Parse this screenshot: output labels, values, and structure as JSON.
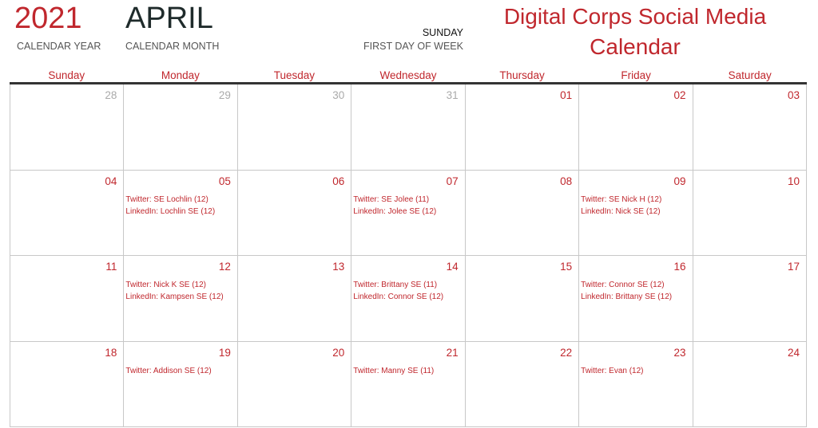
{
  "header": {
    "year": "2021",
    "year_label": "CALENDAR YEAR",
    "month": "APRIL",
    "month_label": "CALENDAR MONTH",
    "first_day": "SUNDAY",
    "first_day_label": "FIRST DAY OF WEEK",
    "title": "Digital Corps Social Media Calendar"
  },
  "days_of_week": [
    "Sunday",
    "Monday",
    "Tuesday",
    "Wednesday",
    "Thursday",
    "Friday",
    "Saturday"
  ],
  "colors": {
    "accent": "#c0272d",
    "muted": "#aaaaaa"
  },
  "weeks": [
    [
      {
        "d": "28",
        "other": true,
        "events": []
      },
      {
        "d": "29",
        "other": true,
        "events": []
      },
      {
        "d": "30",
        "other": true,
        "events": []
      },
      {
        "d": "31",
        "other": true,
        "events": []
      },
      {
        "d": "01",
        "events": []
      },
      {
        "d": "02",
        "events": []
      },
      {
        "d": "03",
        "events": []
      }
    ],
    [
      {
        "d": "04",
        "events": []
      },
      {
        "d": "05",
        "events": [
          "Twitter: SE Lochlin (12)",
          "LinkedIn: Lochlin SE (12)"
        ]
      },
      {
        "d": "06",
        "events": []
      },
      {
        "d": "07",
        "events": [
          "Twitter: SE Jolee (11)",
          "LinkedIn: Jolee SE (12)"
        ]
      },
      {
        "d": "08",
        "events": []
      },
      {
        "d": "09",
        "events": [
          "Twitter: SE Nick H (12)",
          "LinkedIn: Nick SE (12)"
        ]
      },
      {
        "d": "10",
        "events": []
      }
    ],
    [
      {
        "d": "11",
        "events": []
      },
      {
        "d": "12",
        "events": [
          "Twitter: Nick K SE (12)",
          "LinkedIn: Kampsen SE (12)"
        ]
      },
      {
        "d": "13",
        "events": []
      },
      {
        "d": "14",
        "events": [
          "Twitter: Brittany SE (11)",
          "LinkedIn: Connor SE (12)"
        ]
      },
      {
        "d": "15",
        "events": []
      },
      {
        "d": "16",
        "events": [
          "Twitter: Connor SE (12)",
          "LinkedIn: Brittany SE (12)"
        ]
      },
      {
        "d": "17",
        "events": []
      }
    ],
    [
      {
        "d": "18",
        "events": []
      },
      {
        "d": "19",
        "events": [
          "Twitter: Addison SE (12)"
        ]
      },
      {
        "d": "20",
        "events": []
      },
      {
        "d": "21",
        "events": [
          "Twitter: Manny SE (11)"
        ]
      },
      {
        "d": "22",
        "events": []
      },
      {
        "d": "23",
        "events": [
          "Twitter: Evan (12)"
        ]
      },
      {
        "d": "24",
        "events": []
      }
    ]
  ]
}
